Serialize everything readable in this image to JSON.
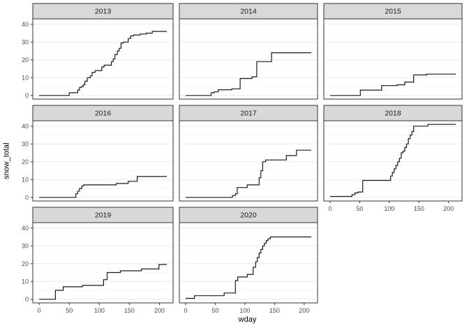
{
  "chart_data": {
    "type": "line",
    "subtype": "step",
    "title": "",
    "xlabel": "wday",
    "ylabel": "snow_total",
    "facet_variable": "year",
    "legend": "none",
    "grid": "horizontal-major-faint-minor",
    "x_ticks": [
      0,
      50,
      100,
      150,
      200
    ],
    "y_ticks": [
      0,
      10,
      20,
      30,
      40
    ],
    "x_domain": [
      0,
      212
    ],
    "y_domain": [
      0,
      41
    ],
    "facets": [
      {
        "label": "2013",
        "grid_row": 0,
        "grid_col": 0,
        "show_y_axis": true,
        "show_x_axis": false,
        "points": [
          [
            0,
            0
          ],
          [
            50,
            1.5
          ],
          [
            64,
            3
          ],
          [
            67,
            4.5
          ],
          [
            70,
            5
          ],
          [
            73,
            6
          ],
          [
            76,
            8
          ],
          [
            80,
            10
          ],
          [
            85,
            11
          ],
          [
            88,
            13
          ],
          [
            93,
            14
          ],
          [
            104,
            16
          ],
          [
            108,
            17
          ],
          [
            120,
            19
          ],
          [
            123,
            20.5
          ],
          [
            126,
            23
          ],
          [
            130,
            25
          ],
          [
            133,
            26.5
          ],
          [
            136,
            29.5
          ],
          [
            140,
            30
          ],
          [
            148,
            32
          ],
          [
            152,
            33.5
          ],
          [
            157,
            34
          ],
          [
            168,
            34.5
          ],
          [
            178,
            35
          ],
          [
            188,
            36
          ],
          [
            212,
            36
          ]
        ]
      },
      {
        "label": "2014",
        "grid_row": 0,
        "grid_col": 1,
        "show_y_axis": false,
        "show_x_axis": false,
        "points": [
          [
            0,
            0
          ],
          [
            43,
            1.5
          ],
          [
            48,
            2
          ],
          [
            55,
            3.2
          ],
          [
            78,
            3.7
          ],
          [
            92,
            9.5
          ],
          [
            112,
            10.5
          ],
          [
            120,
            19
          ],
          [
            145,
            24
          ],
          [
            212,
            24
          ]
        ]
      },
      {
        "label": "2015",
        "grid_row": 0,
        "grid_col": 2,
        "show_y_axis": false,
        "show_x_axis": false,
        "points": [
          [
            0,
            0
          ],
          [
            51,
            3
          ],
          [
            87,
            5.5
          ],
          [
            113,
            6
          ],
          [
            126,
            7.5
          ],
          [
            141,
            11.5
          ],
          [
            163,
            12
          ],
          [
            212,
            12
          ]
        ]
      },
      {
        "label": "2016",
        "grid_row": 1,
        "grid_col": 0,
        "show_y_axis": true,
        "show_x_axis": false,
        "points": [
          [
            0,
            0
          ],
          [
            61,
            2
          ],
          [
            64,
            3.5
          ],
          [
            67,
            5
          ],
          [
            71,
            6.5
          ],
          [
            74,
            7
          ],
          [
            128,
            7.8
          ],
          [
            148,
            9
          ],
          [
            163,
            11.7
          ],
          [
            212,
            11.7
          ]
        ]
      },
      {
        "label": "2017",
        "grid_row": 1,
        "grid_col": 1,
        "show_y_axis": false,
        "show_x_axis": false,
        "points": [
          [
            0,
            0
          ],
          [
            79,
            1
          ],
          [
            84,
            2
          ],
          [
            87,
            5.5
          ],
          [
            104,
            7
          ],
          [
            124,
            11
          ],
          [
            127,
            15
          ],
          [
            130,
            20
          ],
          [
            135,
            21
          ],
          [
            170,
            23.5
          ],
          [
            187,
            26.5
          ],
          [
            212,
            26.5
          ]
        ]
      },
      {
        "label": "2018",
        "grid_row": 1,
        "grid_col": 2,
        "show_y_axis": false,
        "show_x_axis": true,
        "points": [
          [
            0,
            0.5
          ],
          [
            37,
            1.5
          ],
          [
            42,
            2.5
          ],
          [
            47,
            3
          ],
          [
            55,
            9.5
          ],
          [
            102,
            12
          ],
          [
            105,
            14
          ],
          [
            108,
            16
          ],
          [
            111,
            18
          ],
          [
            114,
            20
          ],
          [
            117,
            22
          ],
          [
            120,
            25
          ],
          [
            123,
            26
          ],
          [
            126,
            28
          ],
          [
            129,
            30
          ],
          [
            132,
            33
          ],
          [
            135,
            35
          ],
          [
            138,
            37
          ],
          [
            141,
            40
          ],
          [
            165,
            41
          ],
          [
            212,
            41
          ]
        ]
      },
      {
        "label": "2019",
        "grid_row": 2,
        "grid_col": 0,
        "show_y_axis": true,
        "show_x_axis": true,
        "points": [
          [
            0,
            0
          ],
          [
            27,
            5
          ],
          [
            40,
            7
          ],
          [
            72,
            7.8
          ],
          [
            107,
            11
          ],
          [
            113,
            15
          ],
          [
            135,
            16
          ],
          [
            170,
            17
          ],
          [
            199,
            19.5
          ],
          [
            212,
            19.5
          ]
        ]
      },
      {
        "label": "2020",
        "grid_row": 2,
        "grid_col": 1,
        "show_y_axis": false,
        "show_x_axis": true,
        "points": [
          [
            0,
            0.5
          ],
          [
            15,
            2
          ],
          [
            65,
            3.5
          ],
          [
            84,
            10.5
          ],
          [
            88,
            12.5
          ],
          [
            104,
            14
          ],
          [
            114,
            18
          ],
          [
            118,
            21
          ],
          [
            121,
            23.5
          ],
          [
            124,
            26
          ],
          [
            127,
            28
          ],
          [
            130,
            30
          ],
          [
            133,
            31.5
          ],
          [
            136,
            33
          ],
          [
            139,
            34
          ],
          [
            143,
            35
          ],
          [
            212,
            35
          ]
        ]
      }
    ]
  },
  "style": {
    "background": "#ffffff",
    "strip_fill": "#d9d9d9",
    "strip_border": "#333333",
    "strip_text_color": "#1a1a1a",
    "panel_fill": "#ffffff",
    "panel_border": "#333333",
    "grid_major_color": "#ebebeb",
    "grid_minor_color": "#f5f5f5",
    "line_color": "#1a1a1a",
    "tick_mark_color": "#333333",
    "tick_label_color": "#4d4d4d",
    "axis_title_color": "#000000"
  }
}
